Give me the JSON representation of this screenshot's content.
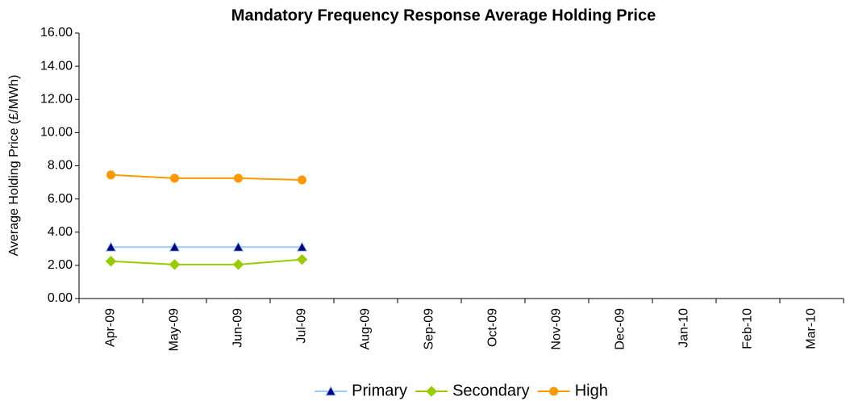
{
  "chart_data": {
    "type": "line",
    "title": "Mandatory Frequency Response Average Holding Price",
    "y_label": "Average Holding Price (£/MWh)",
    "categories": [
      "Apr-09",
      "May-09",
      "Jun-09",
      "Jul-09",
      "Aug-09",
      "Sep-09",
      "Oct-09",
      "Nov-09",
      "Dec-09",
      "Jan-10",
      "Feb-10",
      "Mar-10"
    ],
    "series": [
      {
        "name": "Primary",
        "color": "#99ccff",
        "marker": "triangle",
        "marker_color": "#000080",
        "values": [
          3.1,
          3.1,
          3.1,
          3.1,
          null,
          null,
          null,
          null,
          null,
          null,
          null,
          null
        ]
      },
      {
        "name": "Secondary",
        "color": "#99cc00",
        "marker": "diamond",
        "marker_color": "#99cc00",
        "values": [
          2.25,
          2.05,
          2.05,
          2.35,
          null,
          null,
          null,
          null,
          null,
          null,
          null,
          null
        ]
      },
      {
        "name": "High",
        "color": "#ff9900",
        "marker": "circle",
        "marker_color": "#ff9900",
        "values": [
          7.45,
          7.25,
          7.25,
          7.15,
          null,
          null,
          null,
          null,
          null,
          null,
          null,
          null
        ]
      }
    ],
    "ylim": [
      0,
      16
    ],
    "yticks": [
      {
        "value": 0,
        "label": "0.00"
      },
      {
        "value": 2,
        "label": "2.00"
      },
      {
        "value": 4,
        "label": "4.00"
      },
      {
        "value": 6,
        "label": "6.00"
      },
      {
        "value": 8,
        "label": "8.00"
      },
      {
        "value": 10,
        "label": "10.00"
      },
      {
        "value": 12,
        "label": "12.00"
      },
      {
        "value": 14,
        "label": "14.00"
      },
      {
        "value": 16,
        "label": "16.00"
      }
    ],
    "grid": false,
    "legend": "bottom"
  }
}
